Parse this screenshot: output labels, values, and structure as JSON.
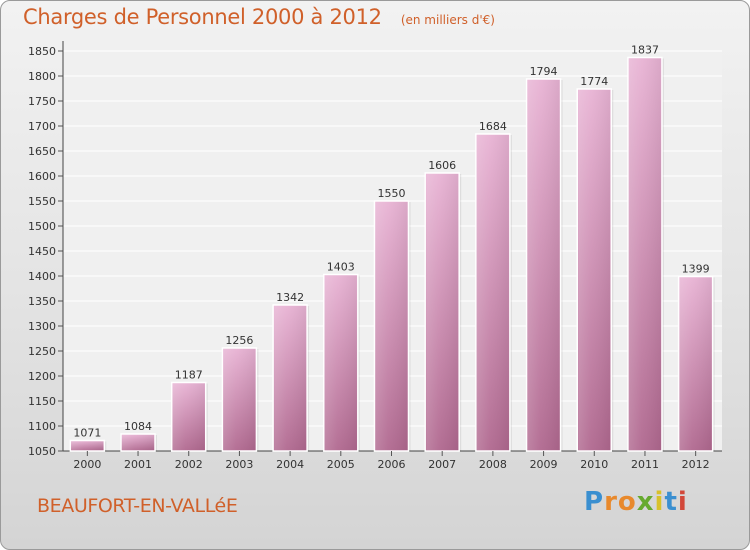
{
  "title": "Charges de Personnel 2000 à 2012",
  "subtitle": "(en milliers d'€)",
  "place": "BEAUFORT-EN-VALLéE",
  "logo": {
    "letters": [
      "P",
      "r",
      "o",
      "x",
      "i",
      "t",
      "i"
    ],
    "colors": [
      "#3a8fd0",
      "#e8892c",
      "#e8892c",
      "#66aa2e",
      "#d8c12a",
      "#3a8fd0",
      "#d2483a"
    ]
  },
  "colors": {
    "bar_top": "#e8b3d4",
    "bar_bottom": "#b0688f",
    "accent_text": "#d0602a"
  },
  "chart_data": {
    "type": "bar",
    "categories": [
      "2000",
      "2001",
      "2002",
      "2003",
      "2004",
      "2005",
      "2006",
      "2007",
      "2008",
      "2009",
      "2010",
      "2011",
      "2012"
    ],
    "values": [
      1071,
      1084,
      1187,
      1256,
      1342,
      1403,
      1550,
      1606,
      1684,
      1794,
      1774,
      1837,
      1399
    ],
    "title": "Charges de Personnel 2000 à 2012",
    "xlabel": "",
    "ylabel": "",
    "ylim": [
      1050,
      1850
    ],
    "yticks": [
      1050,
      1100,
      1150,
      1200,
      1250,
      1300,
      1350,
      1400,
      1450,
      1500,
      1550,
      1600,
      1650,
      1700,
      1750,
      1800,
      1850
    ],
    "grid": true
  }
}
